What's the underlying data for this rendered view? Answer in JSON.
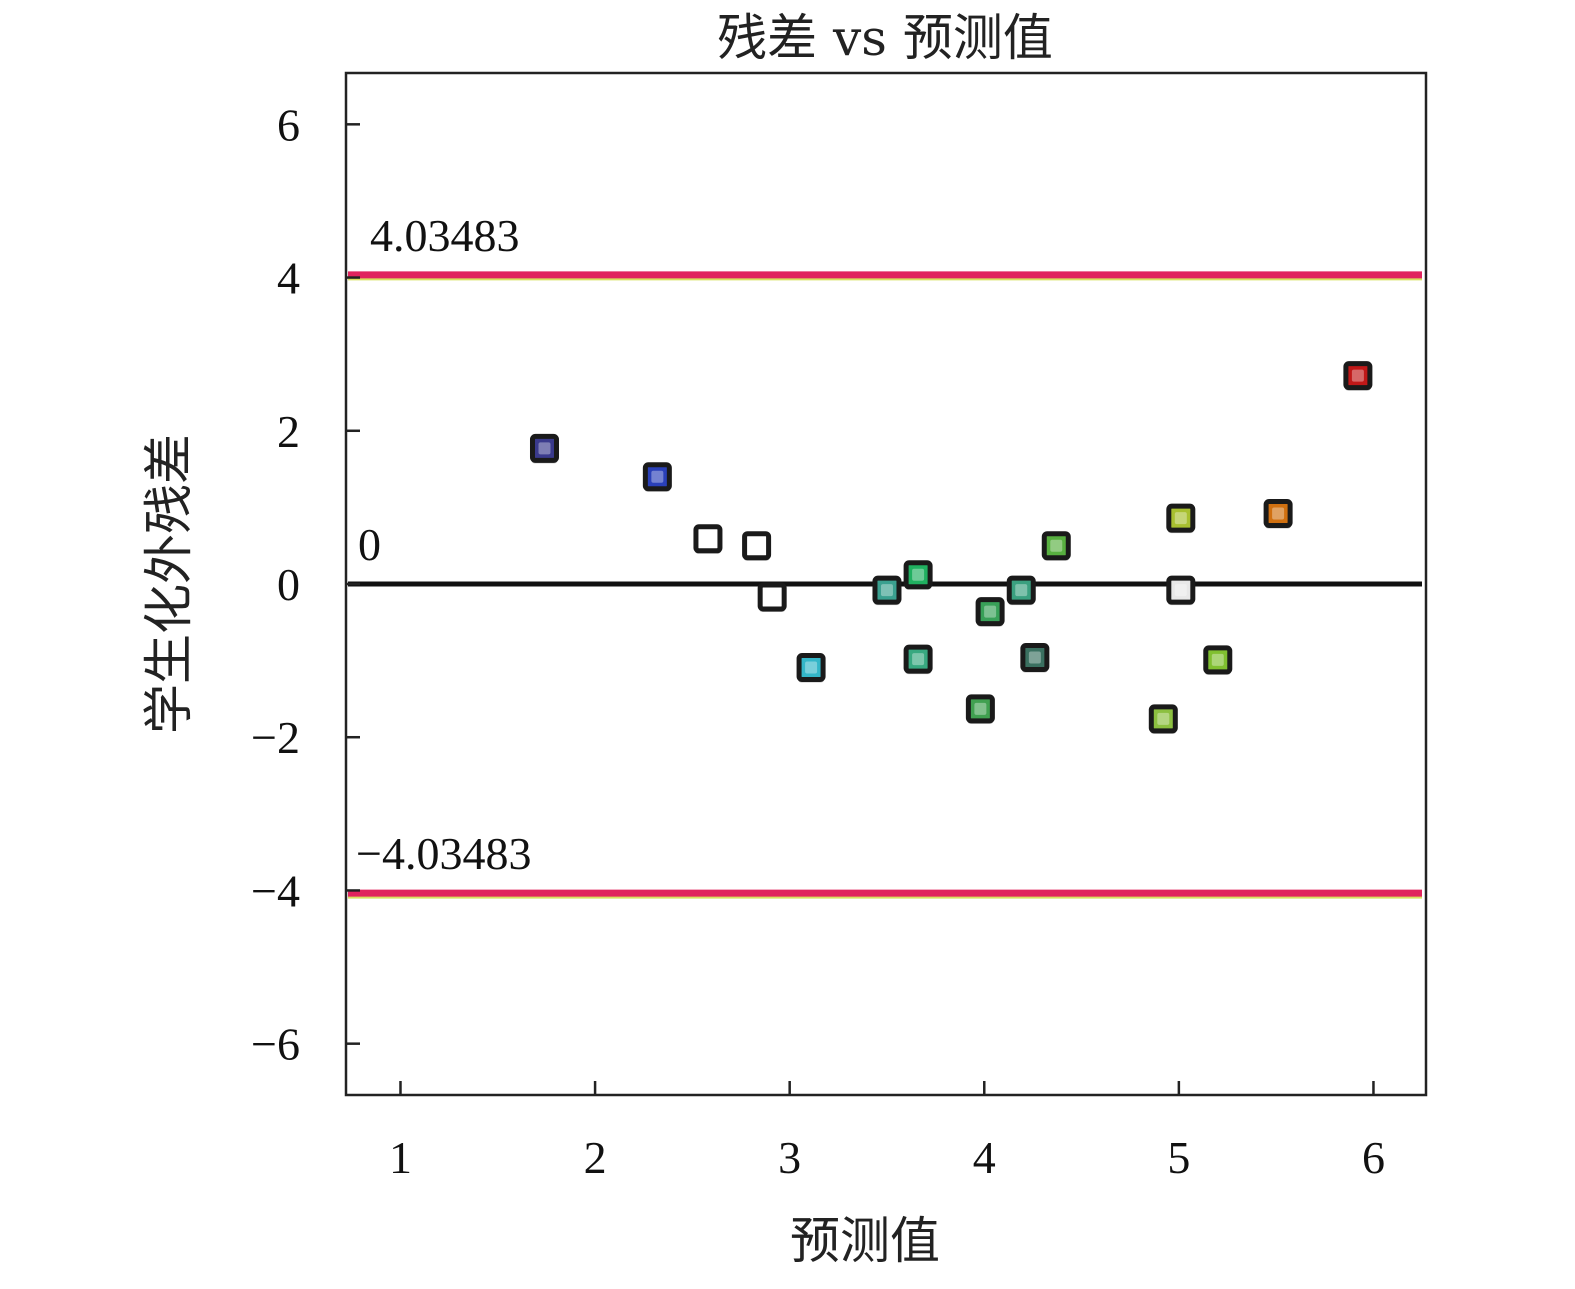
{
  "chart_data": {
    "type": "scatter",
    "title": "残差 vs 预测值",
    "xlabel": "预测值",
    "ylabel": "学生化外残差",
    "xlim": [
      0.72,
      6.27
    ],
    "ylim": [
      -6.67,
      6.67
    ],
    "xticks": [
      1,
      2,
      3,
      4,
      5,
      6
    ],
    "yticks": [
      -6,
      -4,
      -2,
      0,
      2,
      4,
      6
    ],
    "xtick_labels": [
      "1",
      "2",
      "3",
      "4",
      "5",
      "6"
    ],
    "ytick_labels": [
      "−6",
      "−4",
      "−2",
      "0",
      "2",
      "4",
      "6"
    ],
    "grid": false,
    "reference_lines": [
      {
        "y": 4.03483,
        "label": "4.03483",
        "color": "#e0245e"
      },
      {
        "y": 0,
        "label": "0",
        "color": "#111111"
      },
      {
        "y": -4.03483,
        "label": "−4.03483",
        "color": "#e0245e"
      }
    ],
    "points": [
      {
        "x": 1.74,
        "y": 1.77,
        "color": "#3a3a8c"
      },
      {
        "x": 2.32,
        "y": 1.4,
        "color": "#2a40b8"
      },
      {
        "x": 2.58,
        "y": 0.59,
        "color": "#ffffff"
      },
      {
        "x": 2.83,
        "y": 0.5,
        "color": "#ffffff"
      },
      {
        "x": 2.91,
        "y": -0.17,
        "color": "#ffffff"
      },
      {
        "x": 3.11,
        "y": -1.09,
        "color": "#34b6c8"
      },
      {
        "x": 3.5,
        "y": -0.08,
        "color": "#3aa090"
      },
      {
        "x": 3.66,
        "y": 0.12,
        "color": "#20b060"
      },
      {
        "x": 3.66,
        "y": -0.98,
        "color": "#38a880"
      },
      {
        "x": 3.98,
        "y": -1.63,
        "color": "#40a050"
      },
      {
        "x": 4.03,
        "y": -0.36,
        "color": "#38a058"
      },
      {
        "x": 4.19,
        "y": -0.08,
        "color": "#3aa080"
      },
      {
        "x": 4.26,
        "y": -0.96,
        "color": "#3a7060"
      },
      {
        "x": 4.37,
        "y": 0.5,
        "color": "#58b040"
      },
      {
        "x": 4.92,
        "y": -1.76,
        "color": "#8cc040"
      },
      {
        "x": 5.01,
        "y": 0.86,
        "color": "#a8c030"
      },
      {
        "x": 5.01,
        "y": -0.08,
        "color": "#e8e8e8"
      },
      {
        "x": 5.2,
        "y": -0.99,
        "color": "#80c030"
      },
      {
        "x": 5.51,
        "y": 0.92,
        "color": "#d07010"
      },
      {
        "x": 5.92,
        "y": 2.72,
        "color": "#c01818"
      }
    ]
  }
}
